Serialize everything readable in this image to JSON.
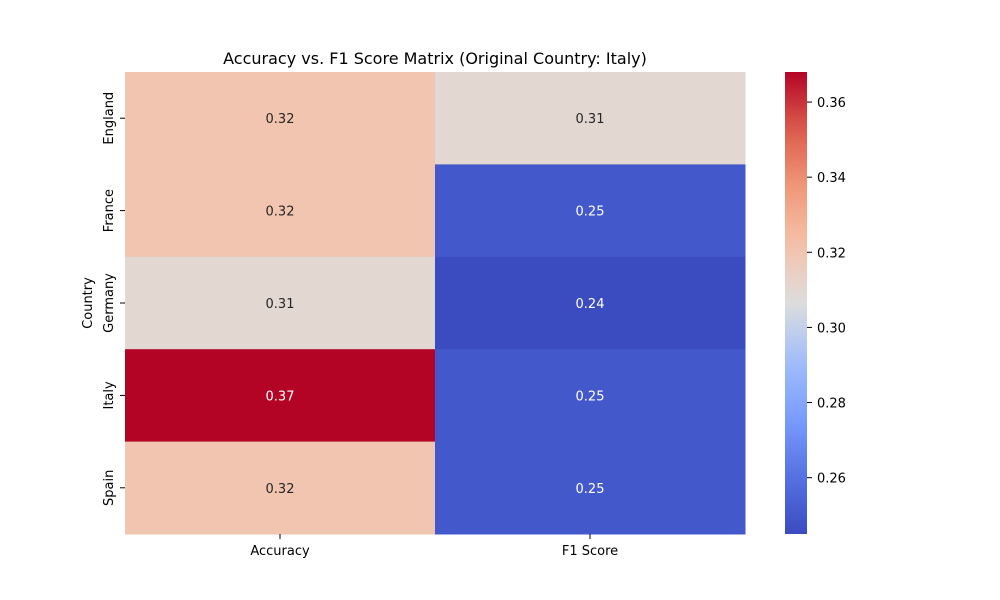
{
  "chart_data": {
    "type": "heatmap",
    "title": "Accuracy vs. F1 Score Matrix (Original Country: Italy)",
    "xlabel": "",
    "ylabel": "Country",
    "columns": [
      "Accuracy",
      "F1 Score"
    ],
    "rows": [
      "England",
      "France",
      "Germany",
      "Italy",
      "Spain"
    ],
    "values": [
      [
        0.32,
        0.31
      ],
      [
        0.32,
        0.25
      ],
      [
        0.31,
        0.24
      ],
      [
        0.37,
        0.25
      ],
      [
        0.32,
        0.25
      ]
    ],
    "annotations": [
      [
        "0.32",
        "0.31"
      ],
      [
        "0.32",
        "0.25"
      ],
      [
        "0.31",
        "0.24"
      ],
      [
        "0.37",
        "0.25"
      ],
      [
        "0.32",
        "0.25"
      ]
    ],
    "colormap": "coolwarm",
    "color_range": [
      0.245,
      0.368
    ],
    "colorbar_ticks": [
      0.26,
      0.28,
      0.3,
      0.32,
      0.34,
      0.36
    ],
    "colorbar_tick_labels": [
      "0.26",
      "0.28",
      "0.30",
      "0.32",
      "0.34",
      "0.36"
    ],
    "grid": false,
    "legend": "colorbar-right"
  }
}
